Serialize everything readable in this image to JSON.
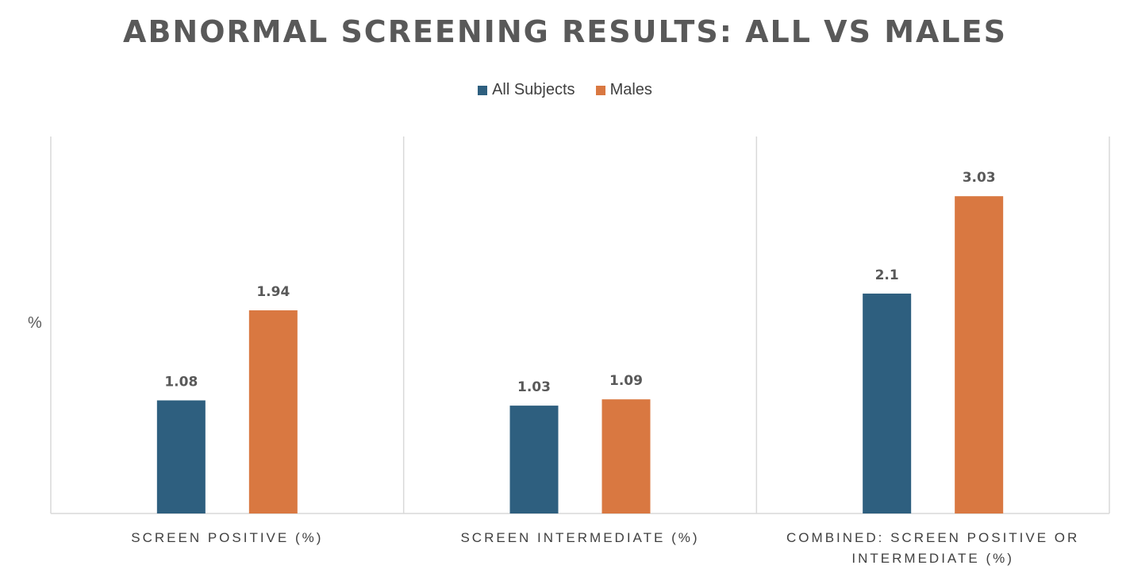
{
  "chart_data": {
    "type": "bar",
    "title": "ABNORMAL SCREENING RESULTS: ALL VS MALES",
    "ylabel": "%",
    "xlabel": "",
    "categories": [
      [
        "SCREEN POSITIVE (%)"
      ],
      [
        "SCREEN INTERMEDIATE (%)"
      ],
      [
        "COMBINED: SCREEN POSITIVE OR",
        "INTERMEDIATE (%)"
      ]
    ],
    "series": [
      {
        "name": "All Subjects",
        "color": "#2e5f7f",
        "values": [
          1.08,
          1.03,
          2.1
        ]
      },
      {
        "name": "Males",
        "color": "#d97841",
        "values": [
          1.94,
          1.09,
          3.03
        ]
      }
    ],
    "ylim": [
      0,
      3.6
    ],
    "grid": false,
    "legend": "top-center",
    "data_labels": true
  }
}
